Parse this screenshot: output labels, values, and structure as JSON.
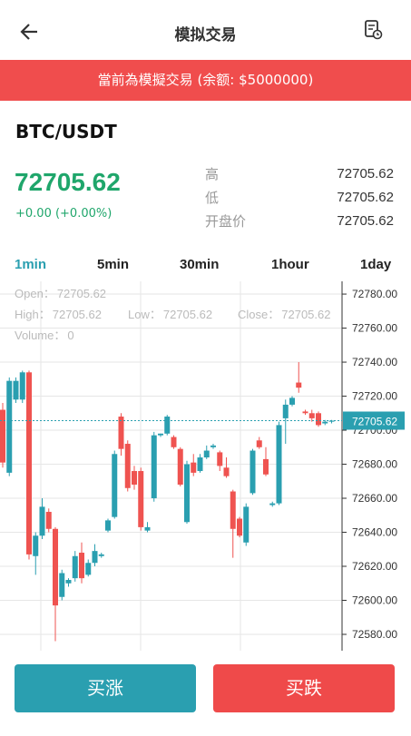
{
  "header": {
    "title": "模拟交易"
  },
  "banner": "當前為模擬交易 (余额: $5000000)",
  "pair": "BTC/USDT",
  "price": 72705.62,
  "change": "+0.00 (+0.00%)",
  "stats": [
    {
      "label": "高",
      "value": 72705.62
    },
    {
      "label": "低",
      "value": 72705.62
    },
    {
      "label": "开盘价",
      "value": 72705.62
    }
  ],
  "intervals": [
    "1min",
    "5min",
    "30min",
    "1hour",
    "1day"
  ],
  "chart_data": {
    "type": "candlestick",
    "info": [
      {
        "label": "Open：",
        "value": 72705.62
      },
      {
        "label": "High：",
        "value": 72705.62
      },
      {
        "label": "Low：",
        "value": 72705.62
      },
      {
        "label": "Close：",
        "value": 72705.62
      },
      {
        "label": "Volume：",
        "value": 0
      }
    ],
    "up_color": "#2a9fb0",
    "down_color": "#ef5350",
    "ylim": [
      72570.4,
      72787.5
    ],
    "yticks": [
      {
        "value": 72580,
        "label": "72580.00"
      },
      {
        "value": 72600,
        "label": "72600.00"
      },
      {
        "value": 72620,
        "label": "72620.00"
      },
      {
        "value": 72640,
        "label": "72640.00"
      },
      {
        "value": 72660,
        "label": "72660.00"
      },
      {
        "value": 72680,
        "label": "72680.00"
      },
      {
        "value": 72700,
        "label": "72700.00"
      },
      {
        "value": 72720,
        "label": "72720.00"
      },
      {
        "value": 72740,
        "label": "72740.00"
      },
      {
        "value": 72760,
        "label": "72760.00"
      },
      {
        "value": 72780,
        "label": "72780.00"
      }
    ],
    "last": 72705.62,
    "open": [
      72712,
      72675,
      72718,
      72718,
      72734,
      72626,
      72638,
      72652,
      72642,
      72602,
      72610,
      72613,
      72628,
      72615,
      72622,
      72626,
      72641,
      72649,
      72708,
      72692,
      72676,
      72676,
      72641,
      72660,
      72697,
      72698,
      72696,
      72689,
      72646,
      72681,
      72676,
      72684,
      72690,
      72687,
      72678,
      72664,
      72648,
      72634,
      72663,
      72694,
      72683,
      72656,
      72657,
      72707,
      72715,
      72728,
      72711,
      72710,
      72710,
      72704,
      72705
    ],
    "high": [
      72716,
      72731,
      72731,
      72735,
      72735,
      72640,
      72660,
      72654,
      72643,
      72618,
      72613,
      72629,
      72634,
      72624,
      72633,
      72628,
      72648,
      72688,
      72710,
      72694,
      72679,
      72678,
      72646,
      72699,
      72698,
      72709,
      72697,
      72690,
      72682,
      72686,
      72686,
      72691,
      72692,
      72688,
      72684,
      72665,
      72649,
      72657,
      72689,
      72696,
      72690,
      72658,
      72705,
      72718,
      72720,
      72740,
      72712,
      72712,
      72711,
      72706,
      72706
    ],
    "low": [
      72678,
      72673,
      72716,
      72716,
      72624,
      72615,
      72636,
      72640,
      72576,
      72600,
      72608,
      72611,
      72610,
      72614,
      72620,
      72625,
      72640,
      72648,
      72685,
      72664,
      72665,
      72641,
      72640,
      72658,
      72696,
      72697,
      72689,
      72667,
      72645,
      72673,
      72675,
      72683,
      72689,
      72676,
      72672,
      72625,
      72637,
      72632,
      72662,
      72689,
      72673,
      72655,
      72656,
      72692,
      72714,
      72722,
      72709,
      72705,
      72702,
      72703,
      72704
    ],
    "close": [
      72681,
      72729,
      72729,
      72734,
      72627,
      72638,
      72655,
      72642,
      72597,
      72616,
      72612,
      72626,
      72613,
      72622,
      72629,
      72627,
      72647,
      72686,
      72689,
      72666,
      72668,
      72643,
      72643,
      72697,
      72698,
      72708,
      72690,
      72668,
      72680,
      72675,
      72684,
      72688,
      72691,
      72679,
      72673,
      72642,
      72638,
      72655,
      72688,
      72690,
      72674,
      72657,
      72703,
      72715,
      72719,
      72725,
      72710,
      72707,
      72703,
      72705,
      72705.62
    ]
  },
  "buttons": [
    "买涨",
    "买跌"
  ]
}
